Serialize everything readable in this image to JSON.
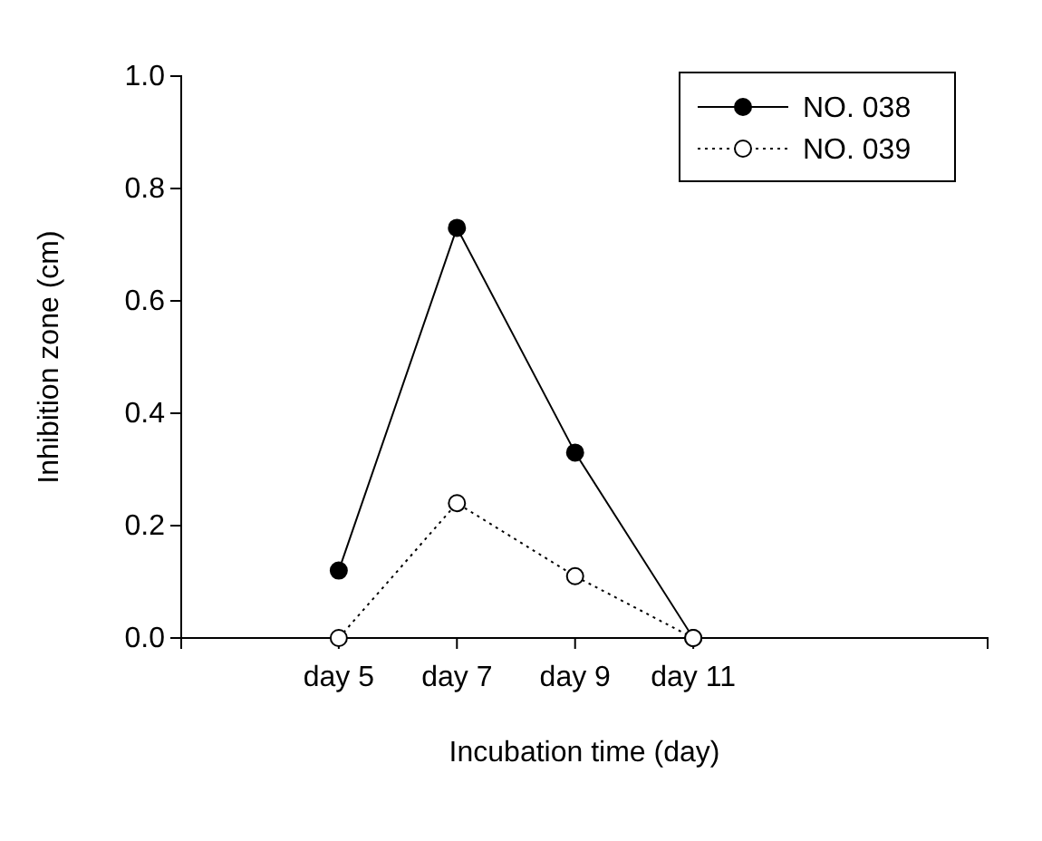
{
  "chart_data": {
    "type": "line",
    "xlabel": "Incubation time (day)",
    "ylabel": "Inhibition zone (cm)",
    "categories": [
      "day 5",
      "day 7",
      "day 9",
      "day 11"
    ],
    "series": [
      {
        "name": "NO. 038",
        "color": "#000000",
        "values": [
          0.12,
          0.73,
          0.33,
          0.0
        ],
        "line_style": "solid"
      },
      {
        "name": "NO. 039",
        "color": "#000000",
        "values": [
          0.0,
          0.24,
          0.11,
          0.0
        ],
        "line_style": "dotted"
      }
    ],
    "ylim": [
      0,
      1
    ],
    "yticks": [
      {
        "value": 0,
        "label": "0.0"
      },
      {
        "value": 0.2,
        "label": "0.2"
      },
      {
        "value": 0.4,
        "label": "0.4"
      },
      {
        "value": 0.6,
        "label": "0.6"
      },
      {
        "value": 0.8,
        "label": "0.8"
      },
      {
        "value": 1,
        "label": "1.0"
      }
    ],
    "marker": "circle",
    "legend": "top right",
    "grid": false
  }
}
